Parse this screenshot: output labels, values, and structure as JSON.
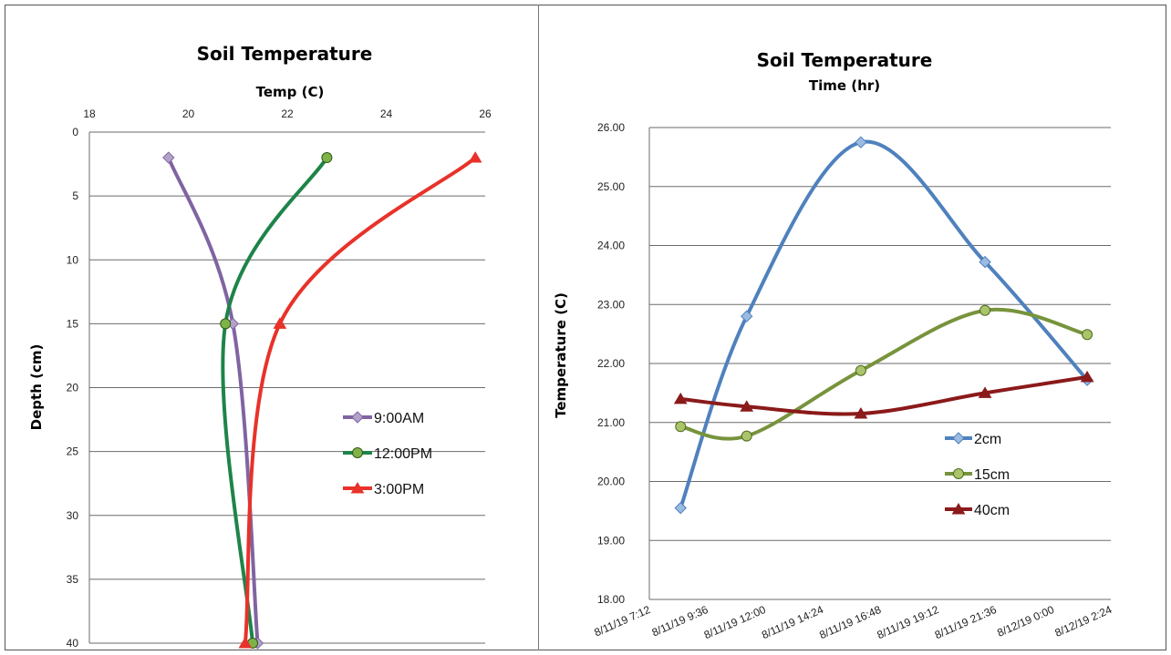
{
  "chart_data": [
    {
      "type": "line",
      "title": "Soil Temperature",
      "xlabel": "Temp (C)",
      "ylabel": "Depth (cm)",
      "x_axis_position": "top",
      "y_axis_inverted": true,
      "xlim": [
        18,
        26
      ],
      "ylim": [
        0,
        40
      ],
      "x_ticks": [
        "18",
        "20",
        "22",
        "24",
        "26"
      ],
      "y_ticks": [
        "0",
        "5",
        "10",
        "15",
        "20",
        "25",
        "30",
        "35",
        "40"
      ],
      "grid": "horizontal",
      "legend_position": "inside-right",
      "series": [
        {
          "name": "9:00AM",
          "color": "#8064a2",
          "marker": "diamond",
          "points": [
            [
              19.6,
              2
            ],
            [
              20.9,
              15
            ],
            [
              21.4,
              40
            ]
          ]
        },
        {
          "name": "12:00PM",
          "color": "#1e8449",
          "marker": "circle",
          "points": [
            [
              22.8,
              2
            ],
            [
              20.75,
              15
            ],
            [
              21.3,
              40
            ]
          ]
        },
        {
          "name": "3:00PM",
          "color": "#e8322a",
          "marker": "triangle",
          "points": [
            [
              25.8,
              2
            ],
            [
              21.85,
              15
            ],
            [
              21.15,
              40
            ]
          ]
        }
      ]
    },
    {
      "type": "line",
      "title": "Soil Temperature",
      "subtitle": "Time (hr)",
      "xlabel": "",
      "ylabel": "Temperature (C)",
      "ylim": [
        18,
        26
      ],
      "y_ticks": [
        "18.00",
        "19.00",
        "20.00",
        "21.00",
        "22.00",
        "23.00",
        "24.00",
        "25.00",
        "26.00"
      ],
      "x_ticks": [
        "8/11/19 7:12",
        "8/11/19 9:36",
        "8/11/19 12:00",
        "8/11/19 14:24",
        "8/11/19 16:48",
        "8/11/19 19:12",
        "8/11/19 21:36",
        "8/12/19 0:00",
        "8/12/19 2:24"
      ],
      "grid": "horizontal",
      "legend_position": "inside-right",
      "series": [
        {
          "name": "2cm",
          "color": "#4f81bd",
          "marker": "diamond",
          "points": [
            [
              "8/11/19 8:30",
              19.55
            ],
            [
              "8/11/19 11:15",
              22.8
            ],
            [
              "8/11/19 16:00",
              25.75
            ],
            [
              "8/11/19 21:10",
              23.72
            ],
            [
              "8/12/19 1:25",
              21.72
            ]
          ]
        },
        {
          "name": "15cm",
          "color": "#77933c",
          "marker": "circle",
          "points": [
            [
              "8/11/19 8:30",
              20.93
            ],
            [
              "8/11/19 11:15",
              20.77
            ],
            [
              "8/11/19 16:00",
              21.88
            ],
            [
              "8/11/19 21:10",
              22.9
            ],
            [
              "8/12/19 1:25",
              22.49
            ]
          ]
        },
        {
          "name": "40cm",
          "color": "#8b1a1a",
          "marker": "triangle",
          "points": [
            [
              "8/11/19 8:30",
              21.4
            ],
            [
              "8/11/19 11:15",
              21.27
            ],
            [
              "8/11/19 16:00",
              21.15
            ],
            [
              "8/11/19 21:10",
              21.5
            ],
            [
              "8/12/19 1:25",
              21.77
            ]
          ]
        }
      ]
    }
  ]
}
